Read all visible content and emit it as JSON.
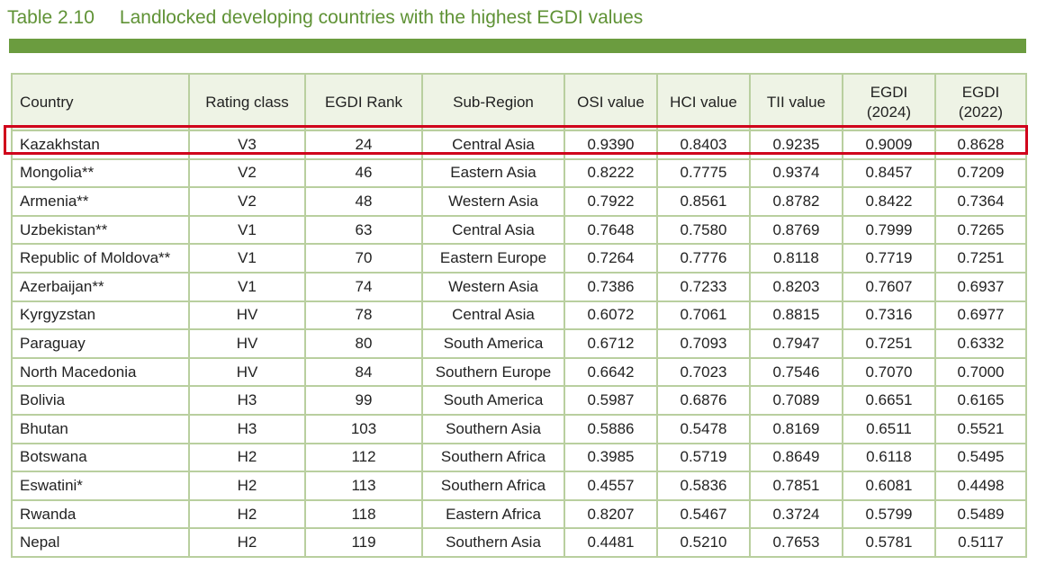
{
  "title": {
    "number": "Table 2.10",
    "text": "Landlocked developing countries with the highest EGDI values"
  },
  "colors": {
    "accent_green": "#6b9c3f",
    "title_green": "#5f9235",
    "highlight_red": "#d0021b",
    "border_green": "#b9cf9f"
  },
  "columns": [
    {
      "label": "Country"
    },
    {
      "label": "Rating class"
    },
    {
      "label": "EGDI Rank"
    },
    {
      "label": "Sub-Region"
    },
    {
      "label": "OSI value"
    },
    {
      "label": "HCI value"
    },
    {
      "label": "TII value"
    },
    {
      "label": "EGDI",
      "sub": "(2024)"
    },
    {
      "label": "EGDI",
      "sub": "(2022)"
    }
  ],
  "rows": [
    [
      "Kazakhstan",
      "V3",
      "24",
      "Central Asia",
      "0.9390",
      "0.8403",
      "0.9235",
      "0.9009",
      "0.8628"
    ],
    [
      "Mongolia**",
      "V2",
      "46",
      "Eastern Asia",
      "0.8222",
      "0.7775",
      "0.9374",
      "0.8457",
      "0.7209"
    ],
    [
      "Armenia**",
      "V2",
      "48",
      "Western Asia",
      "0.7922",
      "0.8561",
      "0.8782",
      "0.8422",
      "0.7364"
    ],
    [
      "Uzbekistan**",
      "V1",
      "63",
      "Central Asia",
      "0.7648",
      "0.7580",
      "0.8769",
      "0.7999",
      "0.7265"
    ],
    [
      "Republic of Moldova**",
      "V1",
      "70",
      "Eastern Europe",
      "0.7264",
      "0.7776",
      "0.8118",
      "0.7719",
      "0.7251"
    ],
    [
      "Azerbaijan**",
      "V1",
      "74",
      "Western Asia",
      "0.7386",
      "0.7233",
      "0.8203",
      "0.7607",
      "0.6937"
    ],
    [
      "Kyrgyzstan",
      "HV",
      "78",
      "Central Asia",
      "0.6072",
      "0.7061",
      "0.8815",
      "0.7316",
      "0.6977"
    ],
    [
      "Paraguay",
      "HV",
      "80",
      "South America",
      "0.6712",
      "0.7093",
      "0.7947",
      "0.7251",
      "0.6332"
    ],
    [
      "North Macedonia",
      "HV",
      "84",
      "Southern Europe",
      "0.6642",
      "0.7023",
      "0.7546",
      "0.7070",
      "0.7000"
    ],
    [
      "Bolivia",
      "H3",
      "99",
      "South America",
      "0.5987",
      "0.6876",
      "0.7089",
      "0.6651",
      "0.6165"
    ],
    [
      "Bhutan",
      "H3",
      "103",
      "Southern Asia",
      "0.5886",
      "0.5478",
      "0.8169",
      "0.6511",
      "0.5521"
    ],
    [
      "Botswana",
      "H2",
      "112",
      "Southern Africa",
      "0.3985",
      "0.5719",
      "0.8649",
      "0.6118",
      "0.5495"
    ],
    [
      "Eswatini*",
      "H2",
      "113",
      "Southern Africa",
      "0.4557",
      "0.5836",
      "0.7851",
      "0.6081",
      "0.4498"
    ],
    [
      "Rwanda",
      "H2",
      "118",
      "Eastern Africa",
      "0.8207",
      "0.5467",
      "0.3724",
      "0.5799",
      "0.5489"
    ],
    [
      "Nepal",
      "H2",
      "119",
      "Southern Asia",
      "0.4481",
      "0.5210",
      "0.7653",
      "0.5781",
      "0.5117"
    ]
  ]
}
